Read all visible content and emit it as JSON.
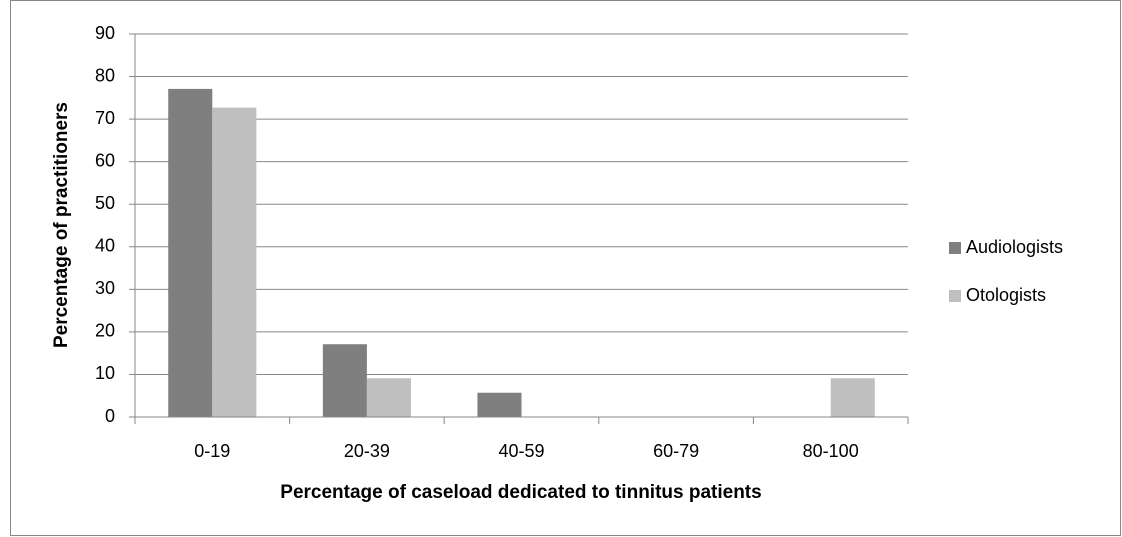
{
  "chart_data": {
    "type": "bar",
    "x_label": "Percentage of caseload dedicated to tinnitus patients",
    "y_label": "Percentage of practitioners",
    "categories": [
      "0-19",
      "20-39",
      "40-59",
      "60-79",
      "80-100"
    ],
    "series": [
      {
        "name": "Audiologists",
        "color": "#7f7f7f",
        "values": [
          77.1,
          17.1,
          5.7,
          0,
          0
        ]
      },
      {
        "name": "Otologists",
        "color": "#bfbfbf",
        "values": [
          72.7,
          9.1,
          0,
          0,
          9.1
        ]
      }
    ],
    "ylim": [
      0,
      90
    ],
    "yticks": [
      0,
      10,
      20,
      30,
      40,
      50,
      60,
      70,
      80,
      90
    ],
    "grid": true,
    "legend": "right"
  }
}
